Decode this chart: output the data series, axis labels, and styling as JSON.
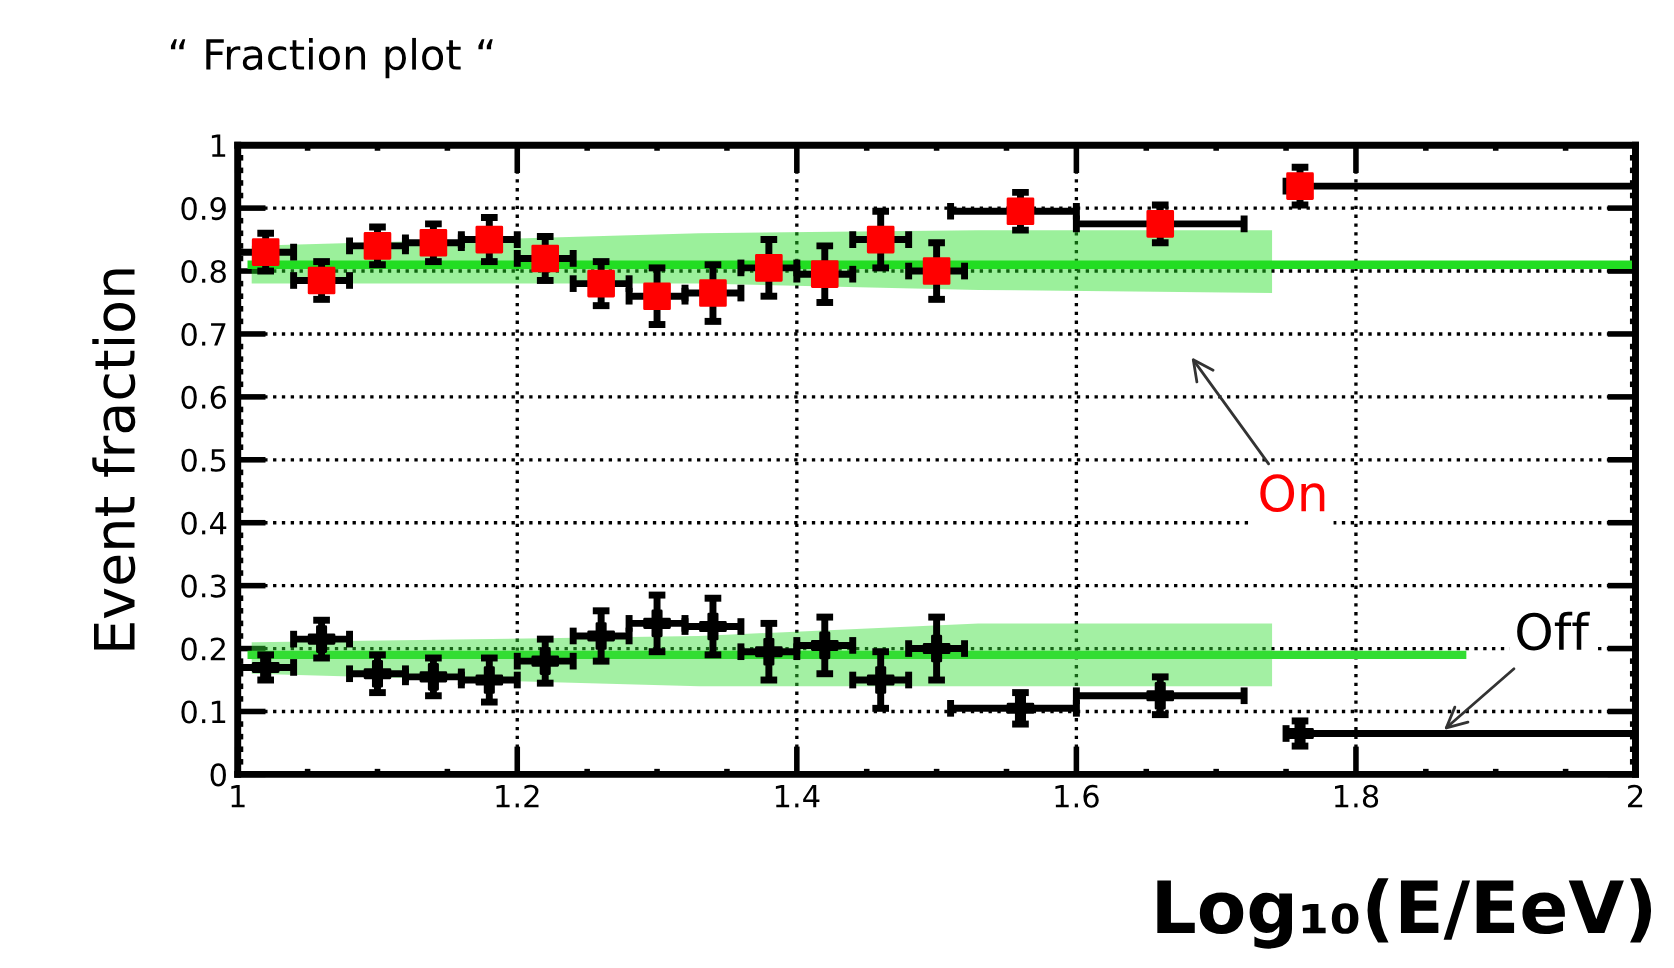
{
  "chart_data": {
    "type": "scatter",
    "title": "“ Fraction plot “",
    "xlabel": "Log₁₀(E/EeV)",
    "ylabel": "Event fraction",
    "xlim": [
      1,
      2
    ],
    "xticks": [
      1,
      1.2,
      1.4,
      1.6,
      1.8,
      2
    ],
    "ylim": [
      0,
      1
    ],
    "yticks": [
      0,
      0.1,
      0.2,
      0.3,
      0.4,
      0.5,
      0.6,
      0.7,
      0.8,
      0.9,
      1
    ],
    "grid": true,
    "legend": false,
    "series": [
      {
        "type": "line",
        "color": "#22dd22",
        "x": [
          1.01,
          1.33,
          1.53,
          1.74,
          2.0
        ],
        "values": [
          0.81,
          0.81,
          0.81,
          0.81,
          0.81
        ],
        "lower": [
          0.78,
          0.78,
          0.77,
          0.765,
          null
        ],
        "upper": [
          0.84,
          0.86,
          0.865,
          0.865,
          null
        ]
      },
      {
        "type": "line",
        "color": "#33dd33",
        "x": [
          1.01,
          1.33,
          1.53,
          1.74,
          1.876
        ],
        "values": [
          0.19,
          0.19,
          0.19,
          0.19,
          0.19
        ],
        "lower": [
          0.16,
          0.14,
          0.14,
          0.14,
          null
        ],
        "upper": [
          0.21,
          0.22,
          0.24,
          0.24,
          null
        ]
      },
      {
        "marker": "square",
        "color": "#ff0000",
        "x": [
          1.02,
          1.06,
          1.1,
          1.14,
          1.18,
          1.22,
          1.26,
          1.3,
          1.34,
          1.38,
          1.42,
          1.46,
          1.5,
          1.56,
          1.66,
          1.76
        ],
        "values": [
          0.83,
          0.785,
          0.84,
          0.845,
          0.85,
          0.82,
          0.78,
          0.76,
          0.765,
          0.805,
          0.795,
          0.85,
          0.8,
          0.895,
          0.875,
          0.935
        ],
        "errors": [
          0.03,
          0.03,
          0.03,
          0.03,
          0.035,
          0.035,
          0.035,
          0.045,
          0.045,
          0.045,
          0.045,
          0.045,
          0.045,
          0.03,
          0.03,
          0.03
        ],
        "xerrors": [
          0.02,
          0.02,
          0.02,
          0.02,
          0.02,
          0.02,
          0.02,
          0.02,
          0.02,
          0.02,
          0.02,
          0.02,
          0.02,
          [
            1.51,
            1.6
          ],
          [
            1.6,
            1.72
          ],
          [
            1.75,
            2.0
          ]
        ]
      },
      {
        "marker": "cross",
        "color": "#000000",
        "x": [
          1.02,
          1.06,
          1.1,
          1.14,
          1.18,
          1.22,
          1.26,
          1.3,
          1.34,
          1.38,
          1.42,
          1.46,
          1.5,
          1.56,
          1.66,
          1.76
        ],
        "values": [
          0.17,
          0.215,
          0.16,
          0.155,
          0.15,
          0.18,
          0.22,
          0.24,
          0.235,
          0.195,
          0.205,
          0.15,
          0.2,
          0.105,
          0.125,
          0.065
        ],
        "errors": [
          0.02,
          0.03,
          0.03,
          0.03,
          0.035,
          0.035,
          0.04,
          0.045,
          0.045,
          0.045,
          0.045,
          0.045,
          0.05,
          0.025,
          0.03,
          0.02
        ],
        "xerrors": [
          0.02,
          0.02,
          0.02,
          0.02,
          0.02,
          0.02,
          0.02,
          0.02,
          0.02,
          0.02,
          0.02,
          0.02,
          0.02,
          [
            1.51,
            1.6
          ],
          [
            1.6,
            1.72
          ],
          [
            1.75,
            2.0
          ]
        ]
      }
    ],
    "annotations": [
      "On",
      {
        "text": "Off",
        "x": 1.86,
        "y": 0.065
      }
    ]
  }
}
